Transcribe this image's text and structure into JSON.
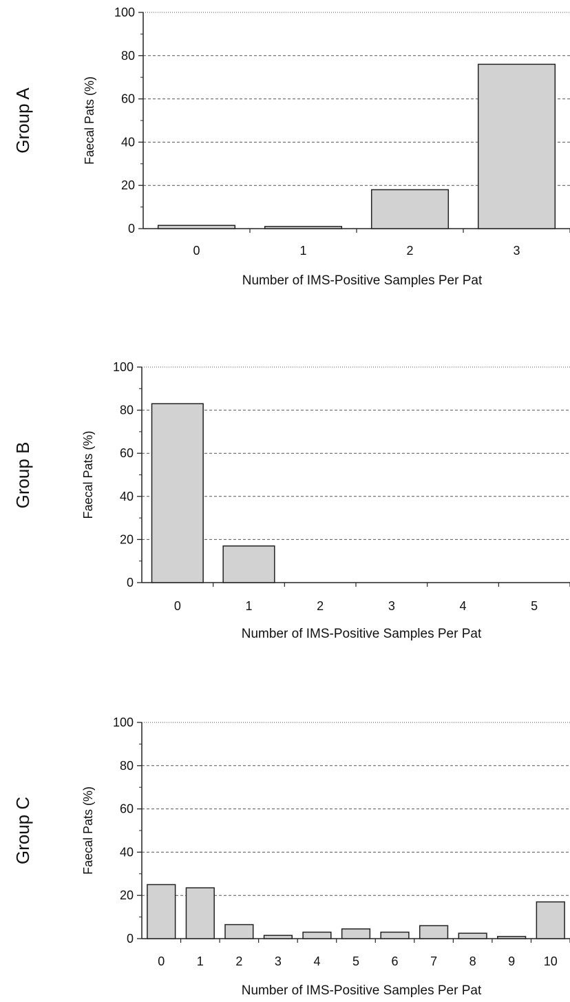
{
  "chart_data": [
    {
      "type": "bar",
      "group_label": "Group A",
      "categories": [
        "0",
        "1",
        "2",
        "3"
      ],
      "values": [
        1.5,
        1,
        18,
        76
      ],
      "xlabel": "Number of IMS-Positive Samples Per Pat",
      "ylabel": "Faecal Pats (%)",
      "ylim": [
        0,
        100
      ],
      "yticks": [
        "0",
        "20",
        "40",
        "60",
        "80",
        "100"
      ],
      "grid": "horizontal dashed"
    },
    {
      "type": "bar",
      "group_label": "Group B",
      "categories": [
        "0",
        "1",
        "2",
        "3",
        "4",
        "5"
      ],
      "values": [
        83,
        17,
        0,
        0,
        0,
        0
      ],
      "xlabel": "Number of IMS-Positive Samples Per Pat",
      "ylabel": "Faecal Pats (%)",
      "ylim": [
        0,
        100
      ],
      "yticks": [
        "0",
        "20",
        "40",
        "60",
        "80",
        "100"
      ],
      "grid": "horizontal dashed"
    },
    {
      "type": "bar",
      "group_label": "Group C",
      "categories": [
        "0",
        "1",
        "2",
        "3",
        "4",
        "5",
        "6",
        "7",
        "8",
        "9",
        "10"
      ],
      "values": [
        25,
        23.5,
        6.5,
        1.5,
        3,
        4.5,
        3,
        6,
        2.5,
        1,
        17
      ],
      "xlabel": "Number of IMS-Positive Samples Per Pat",
      "ylabel": "Faecal Pats (%)",
      "ylim": [
        0,
        100
      ],
      "yticks": [
        "0",
        "20",
        "40",
        "60",
        "80",
        "100"
      ],
      "grid": "horizontal dashed"
    }
  ],
  "colors": {
    "bar_fill": "#d2d2d2",
    "bar_stroke": "#222222",
    "axis": "#222222",
    "grid": "#555555"
  }
}
